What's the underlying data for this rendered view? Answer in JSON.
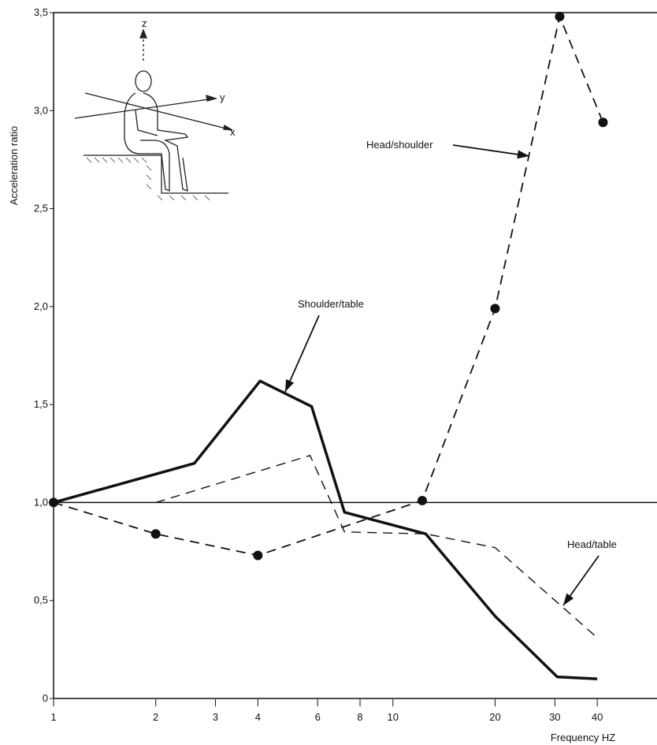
{
  "chart_data": {
    "type": "line",
    "x_label": "Frequency HZ",
    "y_label": "Acceleration ratio",
    "log_x": true,
    "xlim": [
      1,
      60
    ],
    "ylim": [
      0,
      3.5
    ],
    "xticks": [
      1,
      2,
      3,
      4,
      6,
      8,
      10,
      20,
      30,
      40
    ],
    "yticks": [
      0,
      {
        "value": 0.5,
        "label": "0,5"
      },
      {
        "value": 1.0,
        "label": "1,0"
      },
      {
        "value": 1.5,
        "label": "1,5"
      },
      {
        "value": 2.0,
        "label": "2,0"
      },
      {
        "value": 2.5,
        "label": "2,5"
      },
      {
        "value": 3.0,
        "label": "3,0"
      },
      {
        "value": 3.5,
        "label": "3,5"
      }
    ],
    "reference_line": 1.0,
    "series": [
      {
        "name": "Shoulder/table",
        "color": "#111111",
        "style": "solid",
        "width": 3.5,
        "marker": false,
        "x": [
          1,
          2.6,
          4.06,
          5.76,
          7.2,
          12.5,
          20,
          30.5,
          40
        ],
        "values": [
          1.0,
          1.2,
          1.62,
          1.49,
          0.95,
          0.84,
          0.42,
          0.11,
          0.1
        ]
      },
      {
        "name": "Head/shoulder",
        "color": "#111111",
        "style": "dashed",
        "width": 1.8,
        "marker": true,
        "x": [
          1,
          2,
          4,
          12.2,
          20,
          31,
          41.6
        ],
        "values": [
          1.0,
          0.84,
          0.73,
          1.01,
          1.99,
          3.48,
          2.94
        ]
      },
      {
        "name": "Head/table",
        "color": "#111111",
        "style": "dashed",
        "width": 1.4,
        "marker": false,
        "x": [
          2,
          5.7,
          7.2,
          12.5,
          20,
          40
        ],
        "values": [
          1.0,
          1.24,
          0.85,
          0.84,
          0.77,
          0.31
        ]
      }
    ],
    "figure_labels": [
      "z",
      "y",
      "x"
    ]
  }
}
